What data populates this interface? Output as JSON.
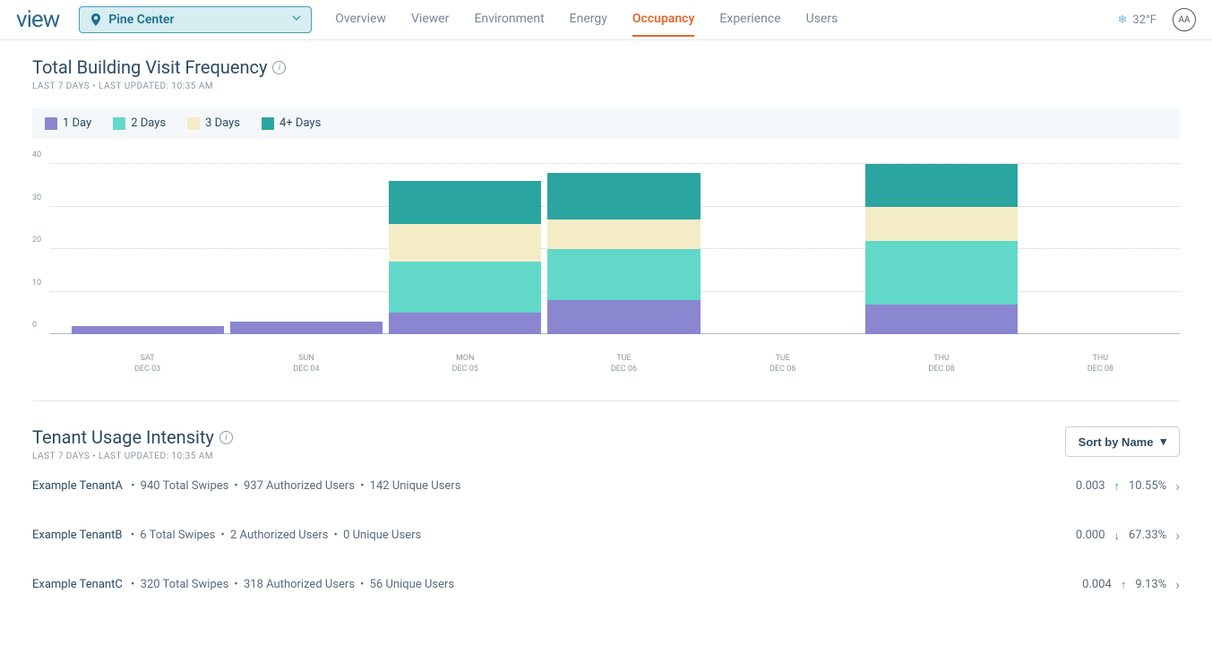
{
  "header": {
    "logo": "view",
    "location": "Pine Center",
    "tabs": [
      "Overview",
      "Viewer",
      "Environment",
      "Energy",
      "Occupancy",
      "Experience",
      "Users"
    ],
    "active_tab": "Occupancy",
    "temperature": "32°F",
    "avatar_initials": "AA"
  },
  "visit_chart": {
    "title": "Total Building Visit Frequency",
    "meta": "LAST 7 DAYS • LAST UPDATED: 10:35 AM",
    "type": "stacked-bar",
    "ylim": [
      0,
      40
    ],
    "ytick_step": 10,
    "grid_color": "#c8d0d8",
    "legend": [
      {
        "label": "1 Day",
        "color": "#8a86d0"
      },
      {
        "label": "2 Days",
        "color": "#62d9c8"
      },
      {
        "label": "3 Days",
        "color": "#f4ecc6"
      },
      {
        "label": "4+ Days",
        "color": "#2ba5a0"
      }
    ],
    "categories": [
      {
        "weekday": "SAT",
        "date": "DEC 03"
      },
      {
        "weekday": "SUN",
        "date": "DEC 04"
      },
      {
        "weekday": "MON",
        "date": "DEC 05"
      },
      {
        "weekday": "TUE",
        "date": "DEC 06"
      },
      {
        "weekday": "TUE",
        "date": "DEC 06"
      },
      {
        "weekday": "THU",
        "date": "DEC 08"
      },
      {
        "weekday": "THU",
        "date": "DEC 08"
      }
    ],
    "series": [
      {
        "d1": 2,
        "d2": 0,
        "d3": 0,
        "d4": 0
      },
      {
        "d1": 3,
        "d2": 0,
        "d3": 0,
        "d4": 0
      },
      {
        "d1": 5,
        "d2": 12,
        "d3": 9,
        "d4": 10
      },
      {
        "d1": 8,
        "d2": 12,
        "d3": 7,
        "d4": 11
      },
      {
        "d1": 0,
        "d2": 0,
        "d3": 0,
        "d4": 0
      },
      {
        "d1": 7,
        "d2": 15,
        "d3": 8,
        "d4": 10
      },
      {
        "d1": 0,
        "d2": 0,
        "d3": 0,
        "d4": 0
      }
    ]
  },
  "tenant_usage": {
    "title": "Tenant Usage Intensity",
    "meta": "LAST 7 DAYS • LAST UPDATED: 10:35 AM",
    "sort_label": "Sort by Name",
    "rows": [
      {
        "name": "Example TenantA",
        "total_swipes": 940,
        "auth_users": 937,
        "unique_users": 142,
        "ratio": "0.003",
        "trend_dir": "up",
        "trend_pct": "10.55%"
      },
      {
        "name": "Example TenantB",
        "total_swipes": 6,
        "auth_users": 2,
        "unique_users": 0,
        "ratio": "0.000",
        "trend_dir": "down",
        "trend_pct": "67.33%"
      },
      {
        "name": "Example TenantC",
        "total_swipes": 320,
        "auth_users": 318,
        "unique_users": 56,
        "ratio": "0.004",
        "trend_dir": "up",
        "trend_pct": "9.13%"
      }
    ],
    "labels": {
      "total_swipes": "Total Swipes",
      "auth_users": "Authorized Users",
      "unique_users": "Unique Users"
    }
  }
}
